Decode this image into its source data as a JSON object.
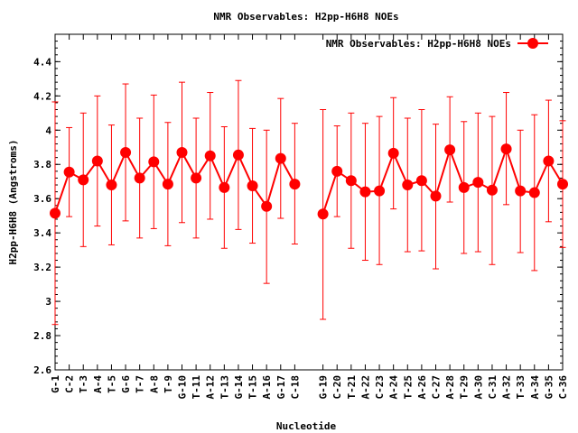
{
  "chart_data": {
    "type": "line",
    "title": "NMR Observables: H2pp-H6H8 NOEs",
    "xlabel": "Nucleotide",
    "ylabel": "H2pp-H6H8 (Angstroms)",
    "ylim": [
      2.6,
      4.56
    ],
    "yticks": [
      "2.6",
      "2.8",
      "3",
      "3.2",
      "3.4",
      "3.6",
      "3.8",
      "4",
      "4.2",
      "4.4"
    ],
    "grid": false,
    "legend_position": "top-right",
    "series": [
      {
        "name": "NMR Observables: H2pp-H6H8 NOEs",
        "color": "#ff0000",
        "points": [
          {
            "label": "G-1",
            "x": 1,
            "y": 3.515,
            "err_low": 2.865,
            "err_high": 4.165
          },
          {
            "label": "C-2",
            "x": 2,
            "y": 3.755,
            "err_low": 3.495,
            "err_high": 4.015
          },
          {
            "label": "T-3",
            "x": 3,
            "y": 3.71,
            "err_low": 3.32,
            "err_high": 4.1
          },
          {
            "label": "A-4",
            "x": 4,
            "y": 3.82,
            "err_low": 3.44,
            "err_high": 4.2
          },
          {
            "label": "T-5",
            "x": 5,
            "y": 3.68,
            "err_low": 3.33,
            "err_high": 4.03
          },
          {
            "label": "G-6",
            "x": 6,
            "y": 3.87,
            "err_low": 3.47,
            "err_high": 4.27
          },
          {
            "label": "T-7",
            "x": 7,
            "y": 3.72,
            "err_low": 3.37,
            "err_high": 4.07
          },
          {
            "label": "A-8",
            "x": 8,
            "y": 3.815,
            "err_low": 3.425,
            "err_high": 4.205
          },
          {
            "label": "T-9",
            "x": 9,
            "y": 3.685,
            "err_low": 3.325,
            "err_high": 4.045
          },
          {
            "label": "G-10",
            "x": 10,
            "y": 3.87,
            "err_low": 3.46,
            "err_high": 4.28
          },
          {
            "label": "T-11",
            "x": 11,
            "y": 3.72,
            "err_low": 3.37,
            "err_high": 4.07
          },
          {
            "label": "A-12",
            "x": 12,
            "y": 3.85,
            "err_low": 3.48,
            "err_high": 4.22
          },
          {
            "label": "T-13",
            "x": 13,
            "y": 3.665,
            "err_low": 3.31,
            "err_high": 4.02
          },
          {
            "label": "G-14",
            "x": 14,
            "y": 3.855,
            "err_low": 3.42,
            "err_high": 4.29
          },
          {
            "label": "T-15",
            "x": 15,
            "y": 3.675,
            "err_low": 3.34,
            "err_high": 4.01
          },
          {
            "label": "A-16",
            "x": 16,
            "y": 3.555,
            "err_low": 3.105,
            "err_high": 4.0
          },
          {
            "label": "G-17",
            "x": 17,
            "y": 3.835,
            "err_low": 3.485,
            "err_high": 4.185
          },
          {
            "label": "C-18",
            "x": 18,
            "y": 3.685,
            "err_low": 3.335,
            "err_high": 4.04
          },
          {
            "label": "G-19",
            "x": 20,
            "y": 3.51,
            "err_low": 2.895,
            "err_high": 4.12
          },
          {
            "label": "C-20",
            "x": 21,
            "y": 3.76,
            "err_low": 3.495,
            "err_high": 4.025
          },
          {
            "label": "T-21",
            "x": 22,
            "y": 3.705,
            "err_low": 3.31,
            "err_high": 4.1
          },
          {
            "label": "A-22",
            "x": 23,
            "y": 3.64,
            "err_low": 3.24,
            "err_high": 4.04
          },
          {
            "label": "C-23",
            "x": 24,
            "y": 3.645,
            "err_low": 3.215,
            "err_high": 4.08
          },
          {
            "label": "A-24",
            "x": 25,
            "y": 3.865,
            "err_low": 3.54,
            "err_high": 4.19
          },
          {
            "label": "T-25",
            "x": 26,
            "y": 3.68,
            "err_low": 3.29,
            "err_high": 4.07
          },
          {
            "label": "A-26",
            "x": 27,
            "y": 3.705,
            "err_low": 3.295,
            "err_high": 4.12
          },
          {
            "label": "C-27",
            "x": 28,
            "y": 3.615,
            "err_low": 3.19,
            "err_high": 4.035
          },
          {
            "label": "A-28",
            "x": 29,
            "y": 3.885,
            "err_low": 3.58,
            "err_high": 4.195
          },
          {
            "label": "T-29",
            "x": 30,
            "y": 3.665,
            "err_low": 3.28,
            "err_high": 4.05
          },
          {
            "label": "A-30",
            "x": 31,
            "y": 3.695,
            "err_low": 3.29,
            "err_high": 4.1
          },
          {
            "label": "C-31",
            "x": 32,
            "y": 3.65,
            "err_low": 3.215,
            "err_high": 4.08
          },
          {
            "label": "A-32",
            "x": 33,
            "y": 3.89,
            "err_low": 3.565,
            "err_high": 4.22
          },
          {
            "label": "T-33",
            "x": 34,
            "y": 3.645,
            "err_low": 3.285,
            "err_high": 4.0
          },
          {
            "label": "A-34",
            "x": 35,
            "y": 3.635,
            "err_low": 3.18,
            "err_high": 4.09
          },
          {
            "label": "G-35",
            "x": 36,
            "y": 3.82,
            "err_low": 3.465,
            "err_high": 4.175
          },
          {
            "label": "C-36",
            "x": 37,
            "y": 3.685,
            "err_low": 3.315,
            "err_high": 4.055
          }
        ]
      }
    ]
  }
}
